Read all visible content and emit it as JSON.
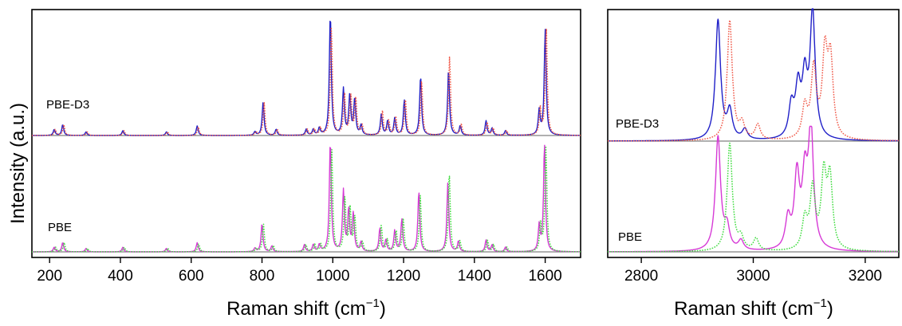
{
  "figure": {
    "ylabel": "Intensity (a.u.)",
    "colors": {
      "pbe_d3_primary": "#2020c8",
      "pbe_d3_secondary": "#f05a4a",
      "pbe_primary": "#d63ad6",
      "pbe_secondary": "#3fdc3f",
      "baseline": "#808080"
    }
  },
  "chart_data": [
    {
      "type": "line",
      "xlabel": "Raman shift (cm",
      "xlabel_sup": "−1",
      "xlabel_close": ")",
      "xlim": [
        150,
        1700
      ],
      "xticks": [
        "200",
        "400",
        "600",
        "800",
        "1000",
        "1200",
        "1400",
        "1600"
      ],
      "xtick_values": [
        200,
        400,
        600,
        800,
        1000,
        1200,
        1400,
        1600
      ],
      "traces": [
        {
          "name": "PBE-D3",
          "series": [
            {
              "style": "solid",
              "color": "#2020c8",
              "shift": 0,
              "peaks": [
                [
                  213,
                  0.05
                ],
                [
                  237,
                  0.09
                ],
                [
                  303,
                  0.03
                ],
                [
                  407,
                  0.04
                ],
                [
                  530,
                  0.03
                ],
                [
                  617,
                  0.08
                ],
                [
                  780,
                  0.03
                ],
                [
                  803,
                  0.27
                ],
                [
                  840,
                  0.05
                ],
                [
                  925,
                  0.05
                ],
                [
                  945,
                  0.05
                ],
                [
                  962,
                  0.06
                ],
                [
                  993,
                  1.0
                ],
                [
                  1030,
                  0.38
                ],
                [
                  1048,
                  0.33
                ],
                [
                  1062,
                  0.3
                ],
                [
                  1080,
                  0.08
                ],
                [
                  1137,
                  0.17
                ],
                [
                  1155,
                  0.12
                ],
                [
                  1175,
                  0.14
                ],
                [
                  1202,
                  0.29
                ],
                [
                  1248,
                  0.49
                ],
                [
                  1327,
                  0.54
                ],
                [
                  1360,
                  0.08
                ],
                [
                  1433,
                  0.12
                ],
                [
                  1450,
                  0.06
                ],
                [
                  1488,
                  0.04
                ],
                [
                  1583,
                  0.2
                ],
                [
                  1600,
                  0.87
                ]
              ]
            },
            {
              "style": "dotted",
              "color": "#f05a4a",
              "shift": 3,
              "peaks": [
                [
                  213,
                  0.05
                ],
                [
                  237,
                  0.09
                ],
                [
                  303,
                  0.03
                ],
                [
                  407,
                  0.04
                ],
                [
                  530,
                  0.03
                ],
                [
                  617,
                  0.07
                ],
                [
                  780,
                  0.03
                ],
                [
                  803,
                  0.27
                ],
                [
                  840,
                  0.05
                ],
                [
                  925,
                  0.05
                ],
                [
                  945,
                  0.05
                ],
                [
                  962,
                  0.06
                ],
                [
                  993,
                  0.9
                ],
                [
                  1030,
                  0.34
                ],
                [
                  1048,
                  0.32
                ],
                [
                  1062,
                  0.3
                ],
                [
                  1080,
                  0.08
                ],
                [
                  1137,
                  0.2
                ],
                [
                  1155,
                  0.12
                ],
                [
                  1175,
                  0.15
                ],
                [
                  1202,
                  0.3
                ],
                [
                  1248,
                  0.45
                ],
                [
                  1327,
                  0.65
                ],
                [
                  1360,
                  0.09
                ],
                [
                  1433,
                  0.11
                ],
                [
                  1450,
                  0.06
                ],
                [
                  1488,
                  0.04
                ],
                [
                  1583,
                  0.22
                ],
                [
                  1600,
                  0.9
                ]
              ]
            }
          ]
        },
        {
          "name": "PBE",
          "series": [
            {
              "style": "solid",
              "color": "#d63ad6",
              "shift": 0,
              "peaks": [
                [
                  213,
                  0.04
                ],
                [
                  237,
                  0.08
                ],
                [
                  303,
                  0.03
                ],
                [
                  407,
                  0.04
                ],
                [
                  530,
                  0.03
                ],
                [
                  617,
                  0.08
                ],
                [
                  780,
                  0.03
                ],
                [
                  800,
                  0.24
                ],
                [
                  828,
                  0.05
                ],
                [
                  920,
                  0.06
                ],
                [
                  945,
                  0.06
                ],
                [
                  962,
                  0.06
                ],
                [
                  993,
                  0.95
                ],
                [
                  1030,
                  0.52
                ],
                [
                  1045,
                  0.35
                ],
                [
                  1058,
                  0.32
                ],
                [
                  1080,
                  0.08
                ],
                [
                  1133,
                  0.2
                ],
                [
                  1150,
                  0.1
                ],
                [
                  1175,
                  0.18
                ],
                [
                  1195,
                  0.28
                ],
                [
                  1243,
                  0.52
                ],
                [
                  1325,
                  0.6
                ],
                [
                  1355,
                  0.09
                ],
                [
                  1433,
                  0.1
                ],
                [
                  1450,
                  0.06
                ],
                [
                  1488,
                  0.04
                ],
                [
                  1583,
                  0.22
                ],
                [
                  1598,
                  0.92
                ]
              ]
            },
            {
              "style": "dotted",
              "color": "#3fdc3f",
              "shift": 4,
              "peaks": [
                [
                  213,
                  0.04
                ],
                [
                  237,
                  0.08
                ],
                [
                  303,
                  0.03
                ],
                [
                  407,
                  0.04
                ],
                [
                  530,
                  0.03
                ],
                [
                  617,
                  0.07
                ],
                [
                  780,
                  0.03
                ],
                [
                  800,
                  0.24
                ],
                [
                  828,
                  0.05
                ],
                [
                  920,
                  0.06
                ],
                [
                  945,
                  0.06
                ],
                [
                  962,
                  0.06
                ],
                [
                  993,
                  0.88
                ],
                [
                  1030,
                  0.46
                ],
                [
                  1045,
                  0.36
                ],
                [
                  1058,
                  0.3
                ],
                [
                  1080,
                  0.08
                ],
                [
                  1133,
                  0.22
                ],
                [
                  1150,
                  0.1
                ],
                [
                  1175,
                  0.18
                ],
                [
                  1195,
                  0.28
                ],
                [
                  1243,
                  0.48
                ],
                [
                  1325,
                  0.68
                ],
                [
                  1355,
                  0.09
                ],
                [
                  1433,
                  0.1
                ],
                [
                  1450,
                  0.06
                ],
                [
                  1488,
                  0.04
                ],
                [
                  1583,
                  0.24
                ],
                [
                  1598,
                  0.9
                ]
              ]
            }
          ]
        }
      ]
    },
    {
      "type": "line",
      "xlabel": "Raman shift (cm",
      "xlabel_sup": "−1",
      "xlabel_close": ")",
      "xlim": [
        2740,
        3260
      ],
      "xticks": [
        "2800",
        "3000",
        "3200"
      ],
      "xtick_values": [
        2800,
        3000,
        3200
      ],
      "traces": [
        {
          "name": "PBE-D3",
          "series": [
            {
              "style": "solid",
              "color": "#2020c8",
              "shift": 0,
              "peaks": [
                [
                  2937,
                  0.95
                ],
                [
                  2958,
                  0.22
                ],
                [
                  2985,
                  0.08
                ],
                [
                  3068,
                  0.25
                ],
                [
                  3080,
                  0.38
                ],
                [
                  3092,
                  0.45
                ],
                [
                  3106,
                  1.0
                ]
              ]
            },
            {
              "style": "dotted",
              "color": "#f05a4a",
              "shift": 0,
              "peaks": [
                [
                  2958,
                  0.95
                ],
                [
                  2980,
                  0.12
                ],
                [
                  3008,
                  0.12
                ],
                [
                  3092,
                  0.25
                ],
                [
                  3108,
                  0.55
                ],
                [
                  3128,
                  0.65
                ],
                [
                  3138,
                  0.6
                ]
              ]
            }
          ]
        },
        {
          "name": "PBE",
          "series": [
            {
              "style": "solid",
              "color": "#d63ad6",
              "shift": 0,
              "peaks": [
                [
                  2937,
                  0.95
                ],
                [
                  2953,
                  0.18
                ],
                [
                  2978,
                  0.08
                ],
                [
                  3062,
                  0.25
                ],
                [
                  3078,
                  0.6
                ],
                [
                  3092,
                  0.55
                ],
                [
                  3103,
                  1.0
                ]
              ]
            },
            {
              "style": "dotted",
              "color": "#3fdc3f",
              "shift": 0,
              "peaks": [
                [
                  2958,
                  0.9
                ],
                [
                  2978,
                  0.1
                ],
                [
                  3005,
                  0.1
                ],
                [
                  3092,
                  0.25
                ],
                [
                  3106,
                  0.5
                ],
                [
                  3126,
                  0.6
                ],
                [
                  3137,
                  0.58
                ]
              ]
            }
          ]
        }
      ]
    }
  ]
}
